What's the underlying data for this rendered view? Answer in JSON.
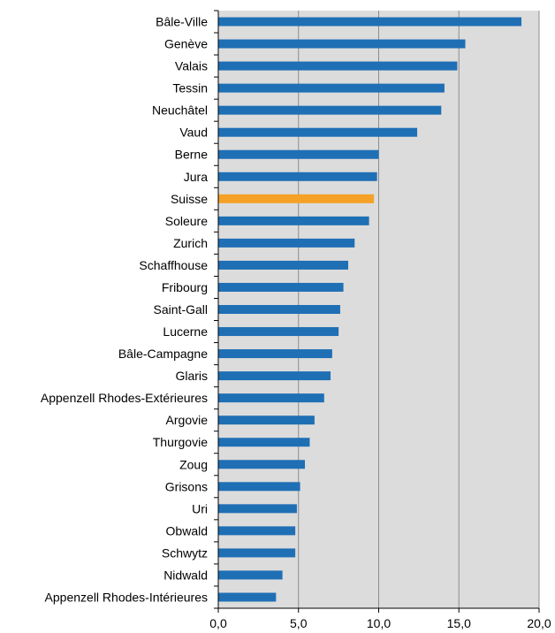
{
  "chart_data": {
    "type": "bar",
    "orientation": "horizontal",
    "categories": [
      "Bâle-Ville",
      "Genève",
      "Valais",
      "Tessin",
      "Neuchâtel",
      "Vaud",
      "Berne",
      "Jura",
      "Suisse",
      "Soleure",
      "Zurich",
      "Schaffhouse",
      "Fribourg",
      "Saint-Gall",
      "Lucerne",
      "Bâle-Campagne",
      "Glaris",
      "Appenzell Rhodes-Extérieures",
      "Argovie",
      "Thurgovie",
      "Zoug",
      "Grisons",
      "Uri",
      "Obwald",
      "Schwytz",
      "Nidwald",
      "Appenzell Rhodes-Intérieures"
    ],
    "values": [
      18.9,
      15.4,
      14.9,
      14.1,
      13.9,
      12.4,
      10.0,
      9.9,
      9.7,
      9.4,
      8.5,
      8.1,
      7.8,
      7.6,
      7.5,
      7.1,
      7.0,
      6.6,
      6.0,
      5.7,
      5.4,
      5.1,
      4.9,
      4.8,
      4.8,
      4.0,
      3.6
    ],
    "highlight": "Suisse",
    "xlim": [
      0,
      20
    ],
    "xticks": [
      0,
      5,
      10,
      15,
      20
    ],
    "xtick_labels": [
      "0,0",
      "5,0",
      "10,0",
      "15,0",
      "20,0"
    ],
    "grid": true,
    "colors": {
      "bar": "#1f6fb5",
      "highlight": "#f5a125",
      "plot_background": "#dcdcdc",
      "gridline": "#8c8c8c"
    }
  }
}
